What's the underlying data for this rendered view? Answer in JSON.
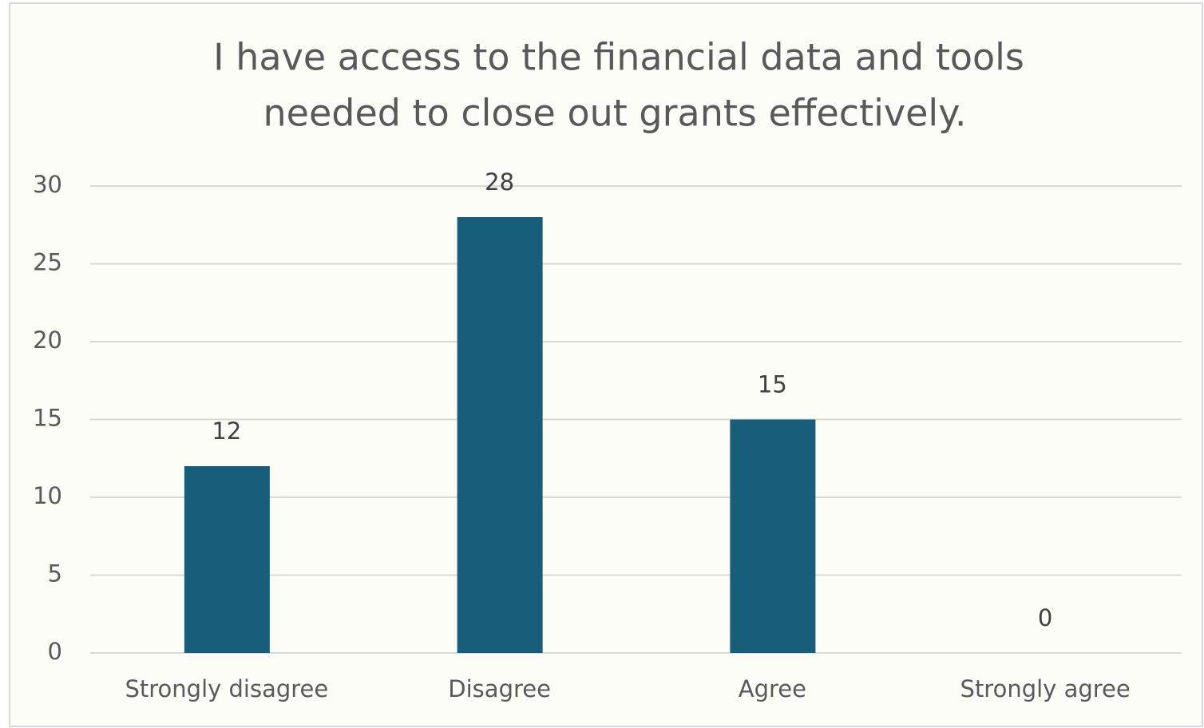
{
  "chart_data": {
    "type": "bar",
    "title": [
      "I have access to the financial data and tools",
      "needed to close out grants effectively."
    ],
    "categories": [
      "Strongly disagree",
      "Disagree",
      "Agree",
      "Strongly agree"
    ],
    "values": [
      12,
      28,
      15,
      0
    ],
    "color": "#175e7a",
    "ylim": [
      0,
      30
    ],
    "yticks": [
      0,
      5,
      10,
      15,
      20,
      25,
      30
    ],
    "grid": true
  }
}
